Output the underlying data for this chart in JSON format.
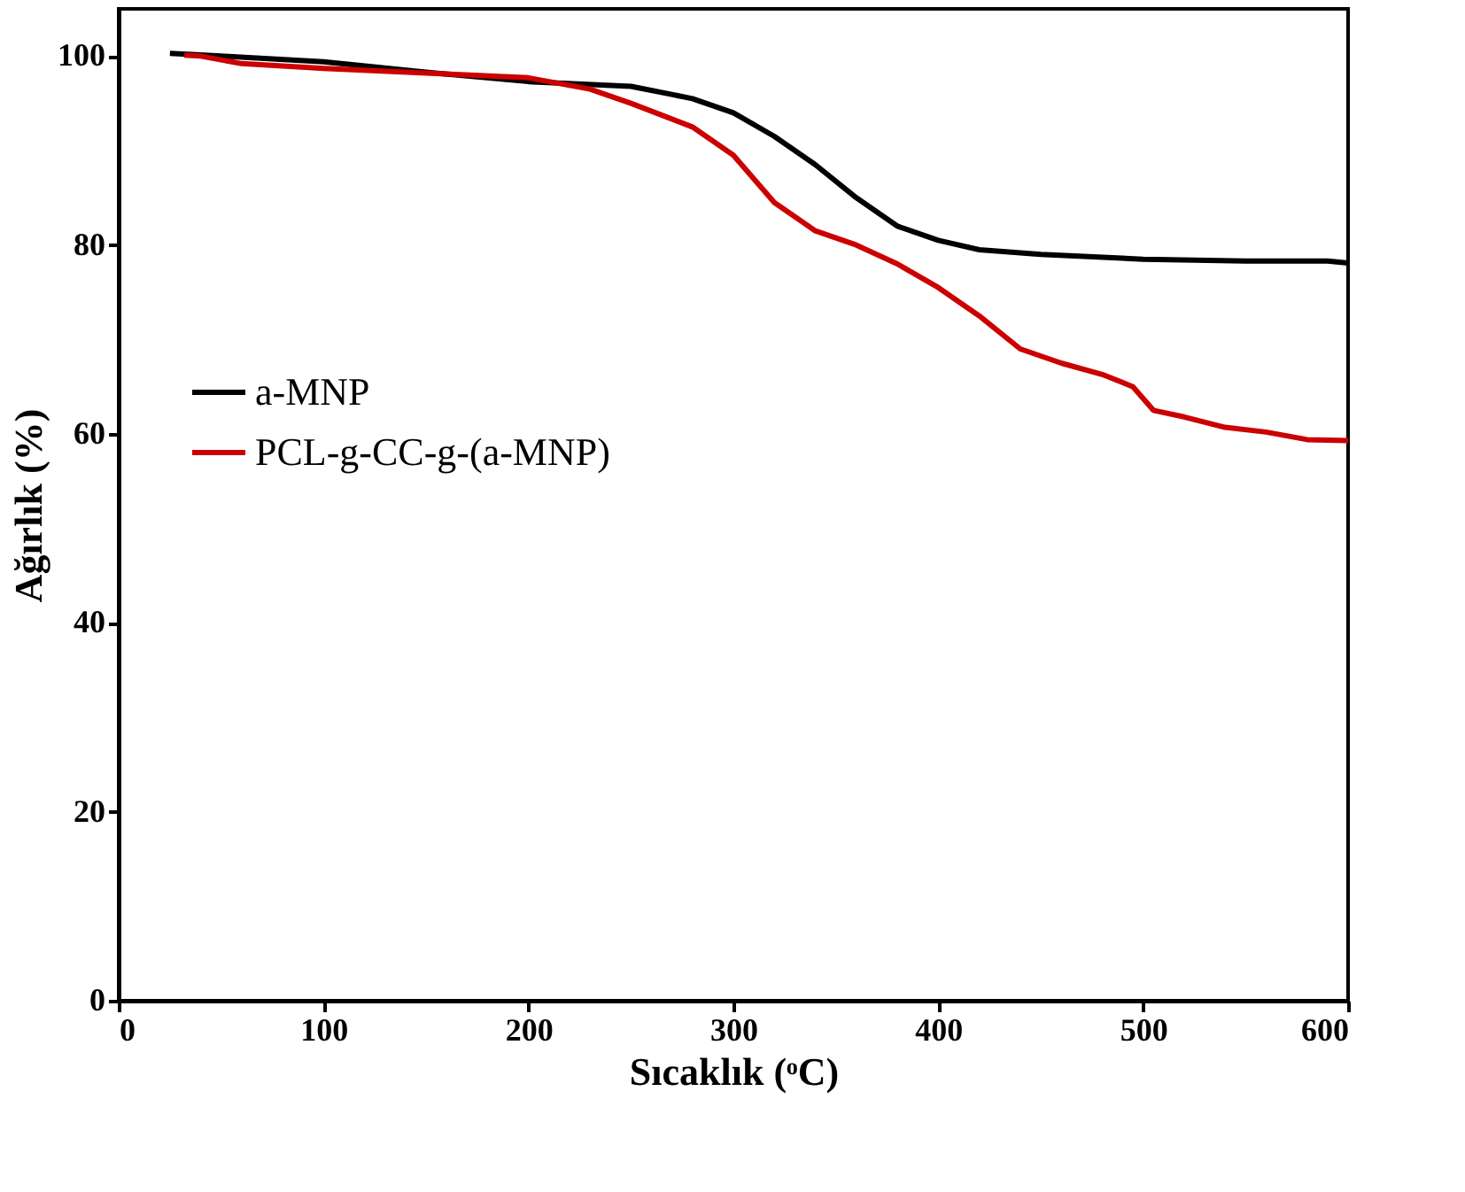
{
  "chart_data": {
    "type": "line",
    "xlabel": "Sıcaklık (ᵒC)",
    "ylabel": "Ağırlık (%)",
    "xlim": [
      0,
      600
    ],
    "xticks": [
      0,
      100,
      200,
      300,
      400,
      500,
      600
    ],
    "ylim": [
      0,
      105
    ],
    "yticks": [
      0,
      20,
      40,
      60,
      80,
      100
    ],
    "legend": "left",
    "grid": false,
    "marker": "none",
    "line_style": "solid",
    "series": [
      {
        "name": "a-MNP",
        "color": "#000000",
        "x": [
          25,
          50,
          100,
          150,
          200,
          250,
          280,
          300,
          320,
          340,
          360,
          380,
          400,
          420,
          450,
          500,
          550,
          590,
          600
        ],
        "values": [
          100.3,
          100,
          99.4,
          98.3,
          97.3,
          96.8,
          95.5,
          94,
          91.5,
          88.5,
          85,
          82,
          80.5,
          79.5,
          79,
          78.5,
          78.3,
          78.3,
          78.1
        ]
      },
      {
        "name": "PCL-g-CC-g-(a-MNP)",
        "color": "#cc0000",
        "x": [
          32,
          40,
          60,
          100,
          150,
          200,
          230,
          250,
          280,
          300,
          320,
          340,
          360,
          380,
          400,
          420,
          440,
          460,
          480,
          495,
          505,
          520,
          540,
          560,
          580,
          600
        ],
        "values": [
          100.1,
          100,
          99.2,
          98.7,
          98.2,
          97.7,
          96.5,
          95,
          92.5,
          89.5,
          84.5,
          81.5,
          80,
          78,
          75.5,
          72.5,
          69,
          67.5,
          66.3,
          65,
          62.5,
          61.8,
          60.7,
          60.2,
          59.4,
          59.3
        ]
      }
    ]
  }
}
